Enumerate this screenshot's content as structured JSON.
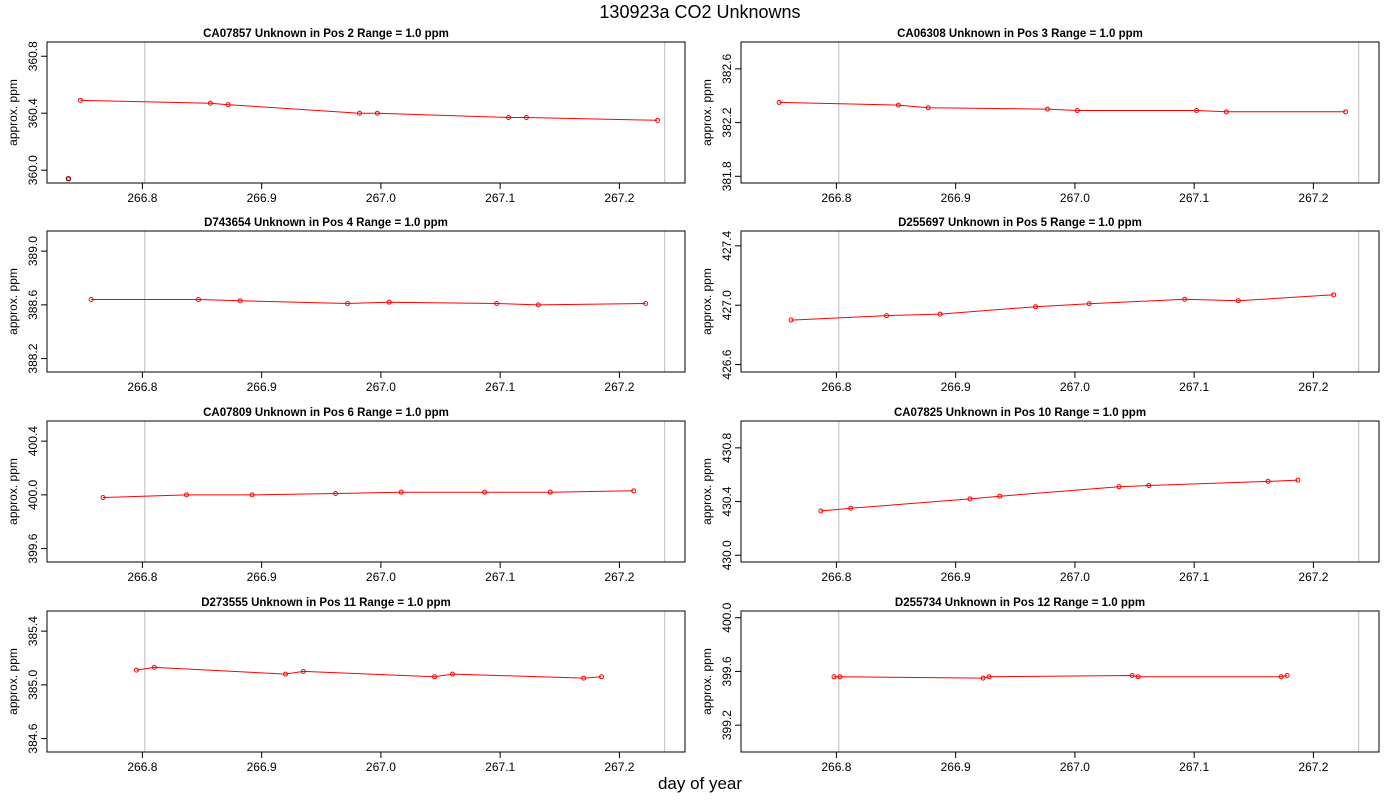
{
  "figure": {
    "title": "130923a  CO2 Unknowns",
    "xlabel": "day of year"
  },
  "colors": {
    "series": "#ff0000",
    "outlier": "#8b0000",
    "axis": "#000000",
    "vline": "#bebebe"
  },
  "chart_data": [
    {
      "type": "line",
      "title": "CA07857    Unknown in Pos 2         Range = 1.0 ppm",
      "xlabel": "",
      "ylabel": "approx. ppm",
      "xlim": [
        266.72,
        267.255
      ],
      "ylim": [
        359.91,
        360.9
      ],
      "xticks": [
        "266.8",
        "266.9",
        "267.0",
        "267.1",
        "267.2"
      ],
      "yticks": [
        "360.0",
        "360.4",
        "360.8"
      ],
      "vlines": [
        266.802,
        267.238
      ],
      "series": [
        {
          "x": [
            266.748,
            266.857,
            266.872,
            266.982,
            266.997,
            267.107,
            267.122,
            267.232
          ],
          "y": [
            360.49,
            360.47,
            360.46,
            360.4,
            360.4,
            360.37,
            360.37,
            360.35
          ]
        }
      ],
      "outliers": [
        {
          "x": 266.738,
          "y": 359.94
        }
      ]
    },
    {
      "type": "line",
      "title": "CA06308    Unknown in Pos 3         Range = 1.0 ppm",
      "xlabel": "",
      "ylabel": "approx. ppm",
      "xlim": [
        266.72,
        267.255
      ],
      "ylim": [
        381.75,
        382.8
      ],
      "xticks": [
        "266.8",
        "266.9",
        "267.0",
        "267.1",
        "267.2"
      ],
      "yticks": [
        "381.8",
        "382.2",
        "382.6"
      ],
      "vlines": [
        266.802,
        267.238
      ],
      "series": [
        {
          "x": [
            266.752,
            266.852,
            266.877,
            266.977,
            267.002,
            267.102,
            267.127,
            267.227
          ],
          "y": [
            382.35,
            382.33,
            382.31,
            382.3,
            382.29,
            382.29,
            382.28,
            382.28
          ]
        }
      ],
      "outliers": []
    },
    {
      "type": "line",
      "title": "D743654    Unknown in Pos 4         Range = 1.0 ppm",
      "xlabel": "",
      "ylabel": "approx. ppm",
      "xlim": [
        266.72,
        267.255
      ],
      "ylim": [
        388.1,
        389.15
      ],
      "xticks": [
        "266.8",
        "266.9",
        "267.0",
        "267.1",
        "267.2"
      ],
      "yticks": [
        "388.2",
        "388.6",
        "389.0"
      ],
      "vlines": [
        266.802,
        267.238
      ],
      "series": [
        {
          "x": [
            266.757,
            266.847,
            266.882,
            266.972,
            267.007,
            267.097,
            267.132,
            267.222
          ],
          "y": [
            388.64,
            388.64,
            388.63,
            388.61,
            388.62,
            388.61,
            388.6,
            388.61
          ]
        }
      ],
      "outliers": []
    },
    {
      "type": "line",
      "title": "D255697    Unknown in Pos 5         Range = 1.0 ppm",
      "xlabel": "",
      "ylabel": "approx. ppm",
      "xlim": [
        266.72,
        267.255
      ],
      "ylim": [
        426.55,
        427.5
      ],
      "xticks": [
        "266.8",
        "266.9",
        "267.0",
        "267.1",
        "267.2"
      ],
      "yticks": [
        "426.6",
        "427.0",
        "427.4"
      ],
      "vlines": [
        266.802,
        267.238
      ],
      "series": [
        {
          "x": [
            266.762,
            266.842,
            266.887,
            266.967,
            267.012,
            267.092,
            267.137,
            267.217
          ],
          "y": [
            426.9,
            426.93,
            426.94,
            426.99,
            427.01,
            427.04,
            427.03,
            427.07
          ]
        }
      ],
      "outliers": []
    },
    {
      "type": "line",
      "title": "CA07809    Unknown in Pos 6         Range = 1.0 ppm",
      "xlabel": "",
      "ylabel": "approx. ppm",
      "xlim": [
        266.72,
        267.255
      ],
      "ylim": [
        399.5,
        400.55
      ],
      "xticks": [
        "266.8",
        "266.9",
        "267.0",
        "267.1",
        "267.2"
      ],
      "yticks": [
        "399.6",
        "400.0",
        "400.4"
      ],
      "vlines": [
        266.802,
        267.238
      ],
      "series": [
        {
          "x": [
            266.767,
            266.837,
            266.892,
            266.962,
            267.017,
            267.087,
            267.142,
            267.212
          ],
          "y": [
            399.98,
            400.0,
            400.0,
            400.01,
            400.02,
            400.02,
            400.02,
            400.03
          ]
        }
      ],
      "outliers": []
    },
    {
      "type": "line",
      "title": "CA07825    Unknown in Pos 10         Range = 1.0 ppm",
      "xlabel": "",
      "ylabel": "approx. ppm",
      "xlim": [
        266.72,
        267.255
      ],
      "ylim": [
        429.95,
        431.0
      ],
      "xticks": [
        "266.8",
        "266.9",
        "267.0",
        "267.1",
        "267.2"
      ],
      "yticks": [
        "430.0",
        "430.4",
        "430.8"
      ],
      "vlines": [
        266.802,
        267.238
      ],
      "series": [
        {
          "x": [
            266.787,
            266.812,
            266.912,
            266.937,
            267.037,
            267.062,
            267.162,
            267.187
          ],
          "y": [
            430.33,
            430.35,
            430.42,
            430.44,
            430.51,
            430.52,
            430.55,
            430.56
          ]
        }
      ],
      "outliers": []
    },
    {
      "type": "line",
      "title": "D273555    Unknown in Pos 11         Range = 1.0 ppm",
      "xlabel": "",
      "ylabel": "approx. ppm",
      "xlim": [
        266.72,
        267.255
      ],
      "ylim": [
        384.5,
        385.55
      ],
      "xticks": [
        "266.8",
        "266.9",
        "267.0",
        "267.1",
        "267.2"
      ],
      "yticks": [
        "384.6",
        "385.0",
        "385.4"
      ],
      "vlines": [
        266.802,
        267.238
      ],
      "series": [
        {
          "x": [
            266.795,
            266.81,
            266.92,
            266.935,
            267.045,
            267.06,
            267.17,
            267.185
          ],
          "y": [
            385.11,
            385.13,
            385.08,
            385.1,
            385.06,
            385.08,
            385.05,
            385.06
          ]
        }
      ],
      "outliers": []
    },
    {
      "type": "line",
      "title": "D255734    Unknown in Pos 12         Range = 1.0 ppm",
      "xlabel": "",
      "ylabel": "approx. ppm",
      "xlim": [
        266.72,
        267.255
      ],
      "ylim": [
        399.0,
        400.05
      ],
      "xticks": [
        "266.8",
        "266.9",
        "267.0",
        "267.1",
        "267.2"
      ],
      "yticks": [
        "399.2",
        "399.6",
        "400.0"
      ],
      "vlines": [
        266.802,
        267.238
      ],
      "series": [
        {
          "x": [
            266.798,
            266.803,
            266.923,
            266.928,
            267.048,
            267.053,
            267.173,
            267.178
          ],
          "y": [
            399.56,
            399.56,
            399.55,
            399.56,
            399.57,
            399.56,
            399.56,
            399.57
          ]
        }
      ],
      "outliers": []
    }
  ]
}
